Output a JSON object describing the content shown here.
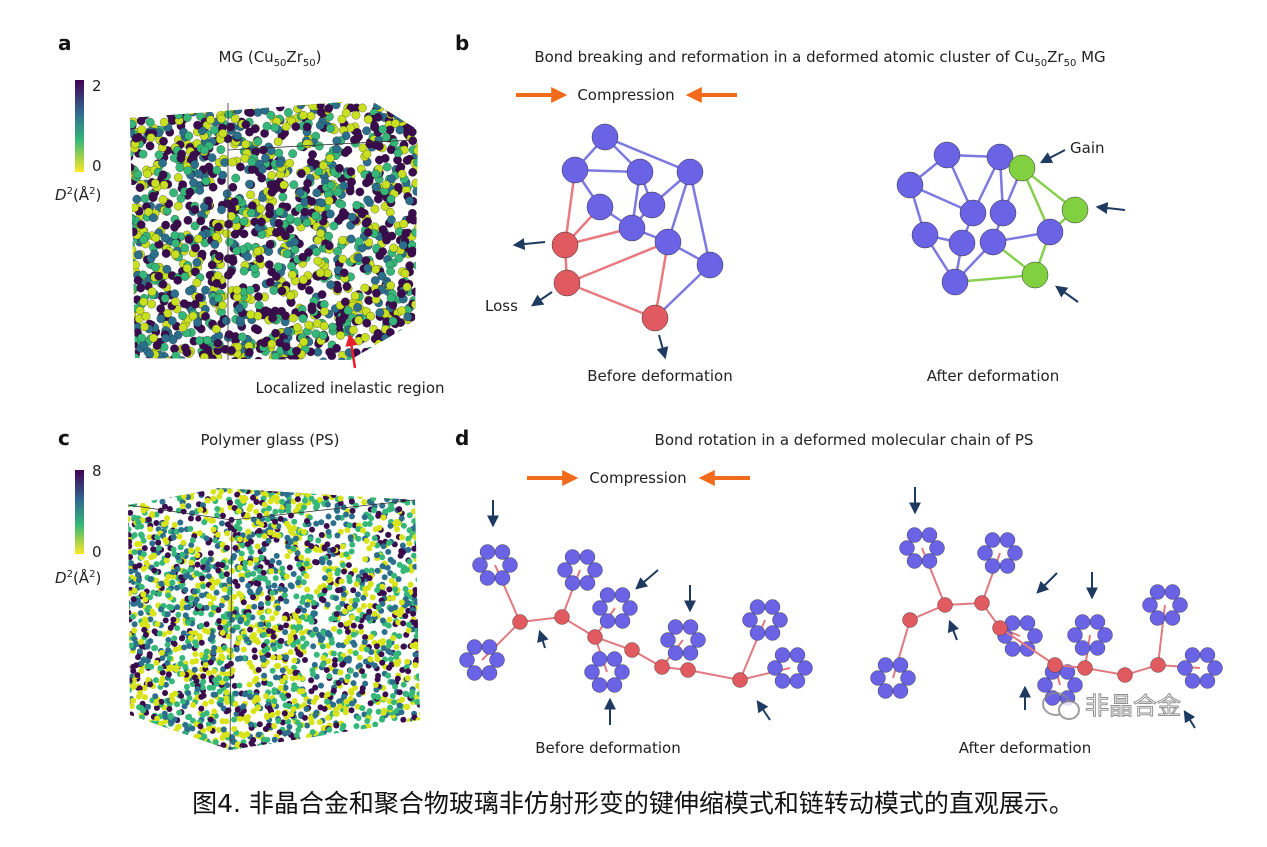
{
  "panels": [
    {
      "label": "a",
      "title": [
        "MG (Cu",
        "50",
        "Zr",
        "50",
        ")"
      ],
      "colorbar": {
        "ticks": [
          2,
          0
        ],
        "label": [
          "D",
          "2",
          "(Å",
          "2",
          ")"
        ]
      },
      "annotation": "Localized inelastic region"
    },
    {
      "label": "b",
      "title": [
        "Bond breaking and reformation in a deformed atomic cluster of Cu",
        "50",
        "Zr",
        "50",
        " MG"
      ],
      "arrow_label": "Compression",
      "annotations": [
        "Loss",
        "Gain"
      ],
      "captions": [
        "Before deformation",
        "After deformation"
      ]
    },
    {
      "label": "c",
      "title": [
        "Polymer glass (PS)"
      ],
      "colorbar": {
        "ticks": [
          8,
          0
        ],
        "label": [
          "D",
          "2",
          "(Å",
          "2",
          ")"
        ]
      }
    },
    {
      "label": "d",
      "title": [
        "Bond rotation in a deformed molecular chain of PS"
      ],
      "arrow_label": "Compression",
      "captions": [
        "Before deformation",
        "After deformation"
      ]
    }
  ],
  "watermark": "非晶合金",
  "caption": "图4. 非晶合金和聚合物玻璃非仿射形变的键伸缩模式和链转动模式的直观展示。"
}
